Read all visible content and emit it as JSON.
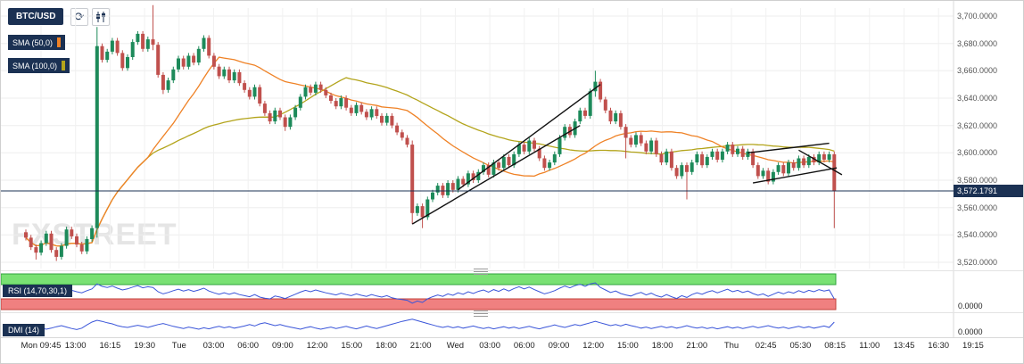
{
  "toolbar": {
    "symbol": "BTC/USD",
    "refresh_icon": "refresh",
    "chart_type_icon": "candlestick"
  },
  "watermark": "FXSTREET",
  "current_price_label": "3,572.1791",
  "panels": {
    "rsi": {
      "label": "RSI (14,70,30,1)",
      "right_value": "0.0000"
    },
    "dmi": {
      "label": "DMI (14)",
      "right_value": "0.0000"
    }
  },
  "chart_data": {
    "type": "candlestick",
    "symbol": "BTC/USD",
    "ylim": [
      3510,
      3715
    ],
    "grid": true,
    "current_price": 3572.1791,
    "price_ticks": [
      "3,700.0000",
      "3,680.0000",
      "3,660.0000",
      "3,640.0000",
      "3,620.0000",
      "3,600.0000",
      "3,580.0000",
      "3,560.0000",
      "3,540.0000",
      "3,520.0000"
    ],
    "time_labels": [
      "Mon 09:45",
      "13:00",
      "16:15",
      "19:30",
      "Tue",
      "03:00",
      "06:00",
      "09:00",
      "12:00",
      "15:00",
      "18:00",
      "21:00",
      "Wed",
      "03:00",
      "06:00",
      "09:00",
      "12:00",
      "15:00",
      "18:00",
      "21:00",
      "Thu",
      "02:45",
      "05:30",
      "08:15",
      "11:00",
      "13:45",
      "16:30",
      "19:15"
    ],
    "overlays": [
      {
        "label": "SMA (50,0)",
        "period": 50,
        "color": "#ef8226"
      },
      {
        "label": "SMA (100,0)",
        "period": 100,
        "color": "#b3a41b"
      }
    ],
    "colors": {
      "up": "#1d8a5a",
      "down": "#c0504d",
      "trendline": "#111111",
      "price_line": "#1b3153",
      "rsi_line": "#3a55d9",
      "dmi_line": "#3a55d9",
      "band_green": "#79e173",
      "band_green_border": "#2fa33c",
      "band_red": "#f08080",
      "band_red_border": "#c2403a"
    },
    "trendlines": [
      {
        "i1": 76,
        "p1": 3548,
        "i2": 109,
        "p2": 3620
      },
      {
        "i1": 85,
        "p1": 3573,
        "i2": 113,
        "p2": 3650
      },
      {
        "i1": 142,
        "p1": 3600,
        "i2": 158,
        "p2": 3607
      },
      {
        "i1": 143,
        "p1": 3578,
        "i2": 159.5,
        "p2": 3589
      },
      {
        "i1": 152,
        "p1": 3602,
        "i2": 160.5,
        "p2": 3584
      }
    ],
    "candles": [
      [
        3542,
        3544,
        3536,
        3538
      ],
      [
        3538,
        3540,
        3529,
        3531
      ],
      [
        3531,
        3533,
        3522,
        3527
      ],
      [
        3527,
        3536,
        3525,
        3534
      ],
      [
        3534,
        3543,
        3532,
        3541
      ],
      [
        3541,
        3543,
        3527,
        3529
      ],
      [
        3529,
        3531,
        3521,
        3524
      ],
      [
        3524,
        3534,
        3522,
        3532
      ],
      [
        3532,
        3546,
        3530,
        3544
      ],
      [
        3544,
        3546,
        3537,
        3539
      ],
      [
        3539,
        3541,
        3531,
        3533
      ],
      [
        3533,
        3535,
        3526,
        3528
      ],
      [
        3528,
        3539,
        3526,
        3537
      ],
      [
        3537,
        3547,
        3535,
        3545
      ],
      [
        3545,
        3692,
        3538,
        3678
      ],
      [
        3678,
        3680,
        3666,
        3668
      ],
      [
        3668,
        3676,
        3666,
        3674
      ],
      [
        3674,
        3684,
        3672,
        3682
      ],
      [
        3682,
        3684,
        3671,
        3673
      ],
      [
        3673,
        3675,
        3660,
        3662
      ],
      [
        3662,
        3672,
        3660,
        3670
      ],
      [
        3670,
        3683,
        3668,
        3681
      ],
      [
        3681,
        3689,
        3679,
        3687
      ],
      [
        3687,
        3689,
        3674,
        3676
      ],
      [
        3676,
        3685,
        3674,
        3683
      ],
      [
        3683,
        3708,
        3675,
        3679
      ],
      [
        3679,
        3681,
        3655,
        3657
      ],
      [
        3657,
        3659,
        3643,
        3646
      ],
      [
        3646,
        3655,
        3644,
        3653
      ],
      [
        3653,
        3663,
        3651,
        3661
      ],
      [
        3661,
        3671,
        3659,
        3669
      ],
      [
        3669,
        3671,
        3661,
        3663
      ],
      [
        3663,
        3673,
        3661,
        3671
      ],
      [
        3671,
        3673,
        3664,
        3666
      ],
      [
        3666,
        3678,
        3664,
        3676
      ],
      [
        3676,
        3686,
        3674,
        3684
      ],
      [
        3684,
        3686,
        3669,
        3671
      ],
      [
        3671,
        3673,
        3661,
        3663
      ],
      [
        3663,
        3665,
        3654,
        3656
      ],
      [
        3656,
        3663,
        3654,
        3661
      ],
      [
        3661,
        3663,
        3651,
        3653
      ],
      [
        3653,
        3661,
        3651,
        3659
      ],
      [
        3659,
        3661,
        3649,
        3651
      ],
      [
        3651,
        3653,
        3644,
        3646
      ],
      [
        3646,
        3648,
        3639,
        3641
      ],
      [
        3641,
        3650,
        3639,
        3648
      ],
      [
        3648,
        3650,
        3634,
        3636
      ],
      [
        3636,
        3638,
        3627,
        3629
      ],
      [
        3629,
        3631,
        3621,
        3623
      ],
      [
        3623,
        3633,
        3621,
        3631
      ],
      [
        3631,
        3633,
        3624,
        3626
      ],
      [
        3626,
        3628,
        3616,
        3619
      ],
      [
        3619,
        3628,
        3617,
        3626
      ],
      [
        3626,
        3635,
        3624,
        3633
      ],
      [
        3633,
        3643,
        3631,
        3641
      ],
      [
        3641,
        3650,
        3639,
        3648
      ],
      [
        3648,
        3650,
        3642,
        3644
      ],
      [
        3644,
        3652,
        3642,
        3650
      ],
      [
        3650,
        3652,
        3644,
        3646
      ],
      [
        3646,
        3648,
        3640,
        3642
      ],
      [
        3642,
        3644,
        3636,
        3638
      ],
      [
        3638,
        3640,
        3632,
        3634
      ],
      [
        3634,
        3642,
        3632,
        3640
      ],
      [
        3640,
        3642,
        3631,
        3633
      ],
      [
        3633,
        3635,
        3627,
        3629
      ],
      [
        3629,
        3637,
        3627,
        3635
      ],
      [
        3635,
        3637,
        3628,
        3630
      ],
      [
        3630,
        3632,
        3624,
        3626
      ],
      [
        3626,
        3634,
        3624,
        3632
      ],
      [
        3632,
        3634,
        3625,
        3627
      ],
      [
        3627,
        3629,
        3620,
        3622
      ],
      [
        3622,
        3629,
        3620,
        3627
      ],
      [
        3627,
        3629,
        3618,
        3620
      ],
      [
        3620,
        3622,
        3613,
        3615
      ],
      [
        3615,
        3617,
        3609,
        3611
      ],
      [
        3611,
        3613,
        3604,
        3606
      ],
      [
        3606,
        3609,
        3548,
        3556
      ],
      [
        3556,
        3563,
        3554,
        3561
      ],
      [
        3561,
        3563,
        3545,
        3553
      ],
      [
        3553,
        3568,
        3551,
        3566
      ],
      [
        3566,
        3573,
        3564,
        3571
      ],
      [
        3571,
        3578,
        3569,
        3576
      ],
      [
        3576,
        3578,
        3567,
        3569
      ],
      [
        3569,
        3580,
        3567,
        3578
      ],
      [
        3578,
        3580,
        3571,
        3573
      ],
      [
        3573,
        3583,
        3571,
        3581
      ],
      [
        3581,
        3583,
        3575,
        3577
      ],
      [
        3577,
        3587,
        3575,
        3585
      ],
      [
        3585,
        3587,
        3578,
        3580
      ],
      [
        3580,
        3588,
        3578,
        3586
      ],
      [
        3586,
        3593,
        3584,
        3591
      ],
      [
        3591,
        3593,
        3582,
        3584
      ],
      [
        3584,
        3595,
        3582,
        3593
      ],
      [
        3593,
        3595,
        3587,
        3589
      ],
      [
        3589,
        3599,
        3587,
        3597
      ],
      [
        3597,
        3599,
        3589,
        3591
      ],
      [
        3591,
        3601,
        3589,
        3599
      ],
      [
        3599,
        3608,
        3597,
        3606
      ],
      [
        3606,
        3608,
        3599,
        3601
      ],
      [
        3601,
        3611,
        3599,
        3609
      ],
      [
        3609,
        3611,
        3601,
        3603
      ],
      [
        3603,
        3605,
        3594,
        3596
      ],
      [
        3596,
        3598,
        3587,
        3589
      ],
      [
        3589,
        3595,
        3587,
        3593
      ],
      [
        3593,
        3601,
        3591,
        3599
      ],
      [
        3599,
        3613,
        3597,
        3611
      ],
      [
        3611,
        3621,
        3609,
        3619
      ],
      [
        3619,
        3621,
        3611,
        3613
      ],
      [
        3613,
        3625,
        3611,
        3623
      ],
      [
        3623,
        3633,
        3621,
        3631
      ],
      [
        3631,
        3633,
        3625,
        3627
      ],
      [
        3627,
        3647,
        3625,
        3645
      ],
      [
        3645,
        3660,
        3641,
        3652
      ],
      [
        3652,
        3654,
        3637,
        3639
      ],
      [
        3639,
        3641,
        3629,
        3631
      ],
      [
        3631,
        3633,
        3621,
        3623
      ],
      [
        3623,
        3631,
        3621,
        3629
      ],
      [
        3629,
        3631,
        3617,
        3619
      ],
      [
        3619,
        3621,
        3596,
        3611
      ],
      [
        3611,
        3613,
        3604,
        3606
      ],
      [
        3606,
        3615,
        3604,
        3613
      ],
      [
        3613,
        3615,
        3605,
        3607
      ],
      [
        3607,
        3609,
        3599,
        3601
      ],
      [
        3601,
        3611,
        3599,
        3609
      ],
      [
        3609,
        3611,
        3597,
        3599
      ],
      [
        3599,
        3601,
        3591,
        3593
      ],
      [
        3593,
        3603,
        3591,
        3601
      ],
      [
        3601,
        3603,
        3587,
        3589
      ],
      [
        3589,
        3591,
        3581,
        3583
      ],
      [
        3583,
        3593,
        3581,
        3591
      ],
      [
        3591,
        3593,
        3566,
        3586
      ],
      [
        3586,
        3595,
        3584,
        3593
      ],
      [
        3593,
        3601,
        3591,
        3599
      ],
      [
        3599,
        3601,
        3589,
        3591
      ],
      [
        3591,
        3599,
        3589,
        3597
      ],
      [
        3597,
        3603,
        3595,
        3601
      ],
      [
        3601,
        3603,
        3593,
        3595
      ],
      [
        3595,
        3603,
        3593,
        3601
      ],
      [
        3601,
        3608,
        3599,
        3606
      ],
      [
        3606,
        3608,
        3597,
        3599
      ],
      [
        3599,
        3605,
        3597,
        3603
      ],
      [
        3603,
        3605,
        3595,
        3597
      ],
      [
        3597,
        3603,
        3595,
        3601
      ],
      [
        3601,
        3603,
        3589,
        3591
      ],
      [
        3591,
        3593,
        3581,
        3583
      ],
      [
        3583,
        3589,
        3581,
        3587
      ],
      [
        3587,
        3589,
        3577,
        3579
      ],
      [
        3579,
        3588,
        3577,
        3586
      ],
      [
        3586,
        3593,
        3584,
        3591
      ],
      [
        3591,
        3593,
        3583,
        3585
      ],
      [
        3585,
        3595,
        3583,
        3593
      ],
      [
        3593,
        3595,
        3587,
        3589
      ],
      [
        3589,
        3598,
        3587,
        3596
      ],
      [
        3596,
        3598,
        3589,
        3591
      ],
      [
        3591,
        3599,
        3589,
        3597
      ],
      [
        3597,
        3599,
        3591,
        3593
      ],
      [
        3593,
        3601,
        3591,
        3599
      ],
      [
        3599,
        3601,
        3593,
        3595
      ],
      [
        3595,
        3601,
        3593,
        3599
      ],
      [
        3599,
        3601,
        3545,
        3572
      ]
    ],
    "rsi": {
      "label": "RSI (14,70,30,1)",
      "overbought": 70,
      "oversold": 30,
      "range": [
        0,
        100
      ],
      "values": [
        52,
        55,
        48,
        50,
        57,
        53,
        46,
        49,
        58,
        54,
        50,
        47,
        53,
        58,
        72,
        65,
        62,
        66,
        60,
        55,
        58,
        63,
        67,
        61,
        64,
        62,
        50,
        44,
        48,
        53,
        57,
        52,
        56,
        51,
        55,
        60,
        52,
        47,
        43,
        47,
        43,
        47,
        42,
        39,
        36,
        42,
        35,
        32,
        30,
        38,
        35,
        31,
        37,
        43,
        49,
        54,
        50,
        55,
        51,
        47,
        44,
        41,
        46,
        42,
        39,
        44,
        40,
        37,
        42,
        38,
        35,
        39,
        33,
        30,
        28,
        26,
        18,
        24,
        20,
        30,
        36,
        41,
        37,
        44,
        40,
        47,
        43,
        50,
        45,
        51,
        55,
        49,
        56,
        51,
        58,
        52,
        59,
        64,
        58,
        63,
        56,
        50,
        44,
        48,
        53,
        60,
        66,
        61,
        67,
        71,
        65,
        72,
        75,
        62,
        55,
        48,
        52,
        45,
        41,
        38,
        44,
        48,
        41,
        46,
        39,
        35,
        42,
        36,
        31,
        39,
        34,
        42,
        47,
        43,
        49,
        53,
        47,
        52,
        57,
        50,
        54,
        48,
        52,
        45,
        40,
        44,
        37,
        43,
        49,
        44,
        50,
        46,
        53,
        48,
        54,
        50,
        56,
        52,
        55,
        30
      ]
    },
    "dmi": {
      "label": "DMI (14)",
      "range": [
        0,
        60
      ],
      "values": [
        22,
        25,
        28,
        24,
        20,
        23,
        27,
        30,
        26,
        22,
        19,
        23,
        32,
        40,
        45,
        42,
        38,
        35,
        30,
        27,
        25,
        28,
        31,
        28,
        25,
        29,
        33,
        36,
        32,
        28,
        25,
        22,
        26,
        23,
        20,
        24,
        21,
        25,
        28,
        24,
        27,
        23,
        26,
        29,
        33,
        29,
        35,
        38,
        34,
        30,
        33,
        29,
        26,
        23,
        20,
        24,
        27,
        23,
        20,
        23,
        26,
        22,
        25,
        28,
        24,
        21,
        25,
        29,
        25,
        22,
        26,
        30,
        34,
        38,
        42,
        45,
        48,
        44,
        40,
        36,
        32,
        28,
        25,
        28,
        24,
        27,
        23,
        26,
        29,
        25,
        22,
        25,
        21,
        24,
        27,
        23,
        26,
        22,
        25,
        28,
        24,
        21,
        25,
        28,
        32,
        28,
        25,
        29,
        33,
        30,
        34,
        38,
        42,
        38,
        34,
        30,
        33,
        29,
        34,
        30,
        27,
        23,
        26,
        22,
        25,
        28,
        24,
        27,
        23,
        26,
        30,
        26,
        23,
        26,
        22,
        25,
        21,
        24,
        27,
        23,
        26,
        22,
        25,
        28,
        24,
        27,
        30,
        26,
        23,
        26,
        22,
        25,
        28,
        24,
        27,
        23,
        26,
        29,
        25,
        40
      ]
    }
  }
}
